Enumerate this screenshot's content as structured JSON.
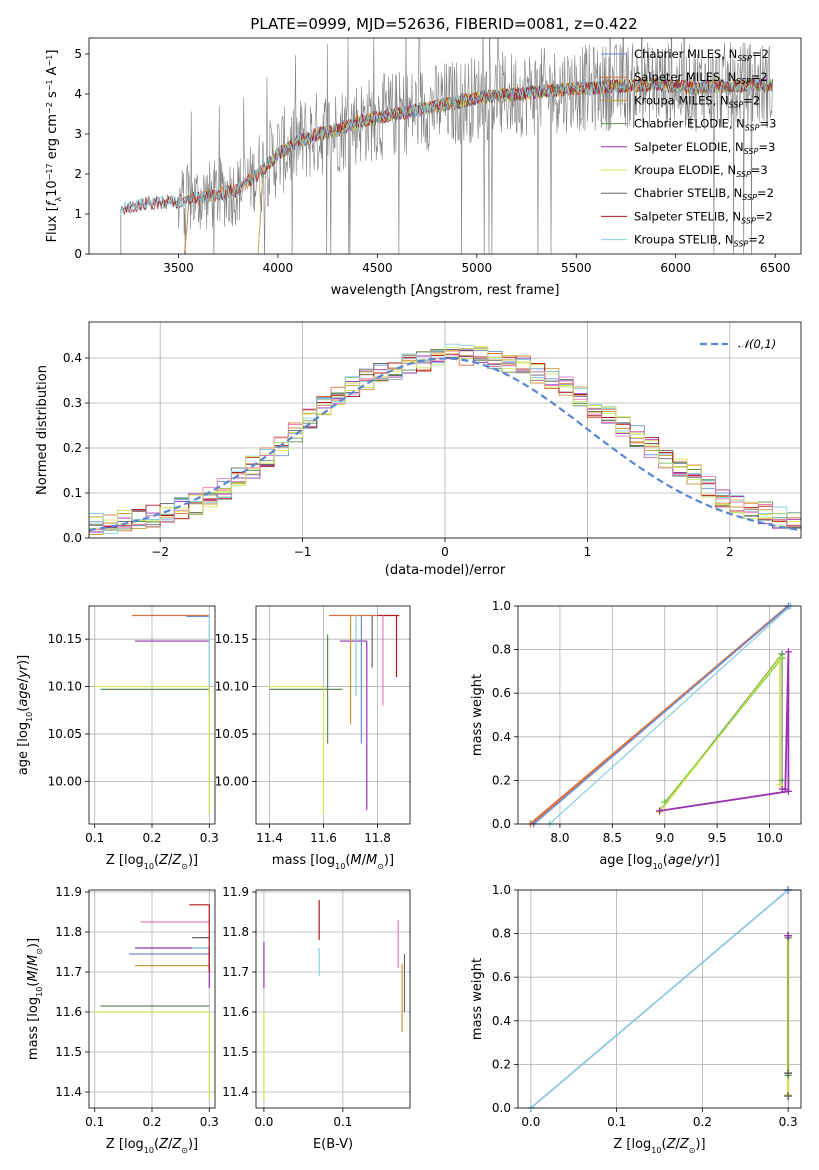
{
  "title": "PLATE=0999, MJD=52636, FIBERID=0081, z=0.422",
  "colors": {
    "chabrier_miles": "#6a8fd8",
    "salpeter_miles": "#e0703a",
    "kroupa_miles": "#c89a3a",
    "chabrier_elodie": "#5e8e5e",
    "salpeter_elodie": "#9b30b0",
    "kroupa_elodie": "#d8e055",
    "chabrier_stelib": "#666666",
    "salpeter_stelib": "#b01818",
    "kroupa_stelib": "#86cfe0",
    "pink": "#e880b8",
    "green": "#7ad040",
    "lime": "#c8e86a",
    "data": "#808080",
    "normal": "#5a86d6"
  },
  "legend_spectrum": [
    {
      "main": "Chabrier MILES, N",
      "sub": "SSP",
      "tail": "=2",
      "color_key": "chabrier_miles"
    },
    {
      "main": "Salpeter MILES, N",
      "sub": "SSP",
      "tail": "=2",
      "color_key": "salpeter_miles"
    },
    {
      "main": "Kroupa MILES, N",
      "sub": "SSP",
      "tail": "=2",
      "color_key": "kroupa_miles"
    },
    {
      "main": "Chabrier ELODIE, N",
      "sub": "SSP",
      "tail": "=3",
      "color_key": "chabrier_elodie"
    },
    {
      "main": "Salpeter ELODIE, N",
      "sub": "SSP",
      "tail": "=3",
      "color_key": "salpeter_elodie"
    },
    {
      "main": "Kroupa ELODIE, N",
      "sub": "SSP",
      "tail": "=3",
      "color_key": "kroupa_elodie"
    },
    {
      "main": "Chabrier STELIB, N",
      "sub": "SSP",
      "tail": "=2",
      "color_key": "chabrier_stelib"
    },
    {
      "main": "Salpeter STELIB, N",
      "sub": "SSP",
      "tail": "=2",
      "color_key": "salpeter_stelib"
    },
    {
      "main": "Kroupa STELIB, N",
      "sub": "SSP",
      "tail": "=2",
      "color_key": "kroupa_stelib"
    }
  ],
  "chart_data": [
    {
      "id": "spectrum",
      "type": "line",
      "xlabel": "wavelength [Angstrom, rest frame]",
      "ylabel": "Flux [f_λ 10^-17 erg cm^-2 s^-1 A^-1]",
      "xlim": [
        3050,
        6630
      ],
      "ylim": [
        0,
        5.4
      ],
      "xticks": [
        3500,
        4000,
        4500,
        5000,
        5500,
        6000,
        6500
      ],
      "yticks": [
        0,
        1,
        2,
        3,
        4,
        5
      ],
      "grid": false,
      "legend_position": "right",
      "continuum": {
        "x": [
          3210,
          3300,
          3400,
          3500,
          3600,
          3700,
          3800,
          3900,
          4000,
          4100,
          4200,
          4300,
          4400,
          4500,
          4600,
          4700,
          4800,
          4900,
          5000,
          5100,
          5200,
          5300,
          5400,
          5500,
          5600,
          5700,
          5800,
          5900,
          6000,
          6100,
          6200,
          6300,
          6400,
          6480
        ],
        "y": [
          1.1,
          1.25,
          1.28,
          1.3,
          1.4,
          1.5,
          1.6,
          2.0,
          2.5,
          2.8,
          3.0,
          3.1,
          3.3,
          3.4,
          3.5,
          3.6,
          3.7,
          3.8,
          3.9,
          3.95,
          4.0,
          4.05,
          4.1,
          4.15,
          4.15,
          4.2,
          4.2,
          4.25,
          4.2,
          4.15,
          4.2,
          4.2,
          4.25,
          4.2
        ]
      },
      "series_names": [
        "Chabrier MILES, NSSP=2",
        "Salpeter MILES, NSSP=2",
        "Kroupa MILES, NSSP=2",
        "Chabrier ELODIE, NSSP=3",
        "Salpeter ELODIE, NSSP=3",
        "Kroupa ELODIE, NSSP=3",
        "Chabrier STELIB, NSSP=2",
        "Salpeter STELIB, NSSP=2",
        "Kroupa STELIB, NSSP=2"
      ]
    },
    {
      "id": "residual_hist",
      "type": "line",
      "xlabel": "(data-model)/error",
      "ylabel": "Normed distribution",
      "xlim": [
        -2.5,
        2.5
      ],
      "ylim": [
        0,
        0.48
      ],
      "xticks": [
        -2,
        -1,
        0,
        1,
        2
      ],
      "yticks": [
        0.0,
        0.1,
        0.2,
        0.3,
        0.4
      ],
      "grid": true,
      "legend": [
        {
          "name": "𝒩(0,1)",
          "style": "dashed"
        }
      ],
      "legend_position": "top-right",
      "hist_envelope": {
        "x": [
          -2.5,
          -2.3,
          -2.1,
          -1.9,
          -1.7,
          -1.5,
          -1.3,
          -1.1,
          -0.9,
          -0.7,
          -0.5,
          -0.3,
          -0.1,
          0.1,
          0.3,
          0.5,
          0.7,
          0.9,
          1.1,
          1.3,
          1.5,
          1.7,
          1.9,
          2.1,
          2.3,
          2.5
        ],
        "y": [
          0.03,
          0.035,
          0.045,
          0.06,
          0.08,
          0.12,
          0.17,
          0.22,
          0.28,
          0.33,
          0.36,
          0.38,
          0.4,
          0.41,
          0.4,
          0.39,
          0.36,
          0.33,
          0.28,
          0.24,
          0.19,
          0.15,
          0.1,
          0.07,
          0.05,
          0.03
        ]
      },
      "normal": {
        "mean": 0,
        "sigma": 1
      }
    },
    {
      "id": "age_vs_Z",
      "type": "line",
      "xlabel": "Z [log10(Z/Z⊙)]",
      "ylabel": "age [log10(age/yr)]",
      "xlim": [
        0.09,
        0.31
      ],
      "ylim": [
        9.955,
        10.185
      ],
      "xticks": [
        0.1,
        0.2,
        0.3
      ],
      "yticks": [
        10.0,
        10.05,
        10.1,
        10.15
      ],
      "grid": true,
      "segments": [
        {
          "color_key": "salpeter_miles",
          "h": {
            "y": 10.175,
            "x0": 0.165,
            "x1": 0.3
          }
        },
        {
          "color_key": "chabrier_miles",
          "h": {
            "y": 10.174,
            "x0": 0.26,
            "x1": 0.3
          }
        },
        {
          "color_key": "salpeter_elodie",
          "h": {
            "y": 10.148,
            "x0": 0.17,
            "x1": 0.3
          }
        },
        {
          "color_key": "kroupa_elodie",
          "h": {
            "y": 10.1,
            "x0": 0.1,
            "x1": 0.3
          }
        },
        {
          "color_key": "chabrier_elodie",
          "h": {
            "y": 10.097,
            "x0": 0.11,
            "x1": 0.3
          }
        },
        {
          "color_key": "kroupa_stelib",
          "v": {
            "x": 0.3,
            "y0": 10.09,
            "y1": 10.176
          }
        },
        {
          "color_key": "kroupa_elodie",
          "v": {
            "x": 0.3,
            "y0": 9.965,
            "y1": 10.1
          }
        }
      ]
    },
    {
      "id": "age_vs_mass",
      "type": "line",
      "xlabel": "mass [log10(M/M⊙)]",
      "ylabel": "",
      "xlim": [
        11.35,
        11.92
      ],
      "ylim": [
        9.955,
        10.185
      ],
      "xticks": [
        11.4,
        11.6,
        11.8
      ],
      "yticks": [
        10.0,
        10.05,
        10.1,
        10.15
      ],
      "grid": true,
      "segments": [
        {
          "color_key": "kroupa_elodie",
          "h": {
            "y": 10.1,
            "x0": 11.39,
            "x1": 11.6
          }
        },
        {
          "color_key": "chabrier_elodie",
          "h": {
            "y": 10.097,
            "x0": 11.4,
            "x1": 11.67
          }
        },
        {
          "color_key": "salpeter_miles",
          "h": {
            "y": 10.175,
            "x0": 11.62,
            "x1": 11.8
          }
        },
        {
          "color_key": "salpeter_stelib",
          "h": {
            "y": 10.175,
            "x0": 11.8,
            "x1": 11.88
          }
        },
        {
          "color_key": "salpeter_elodie",
          "h": {
            "y": 10.148,
            "x0": 11.66,
            "x1": 11.76
          }
        },
        {
          "color_key": "kroupa_elodie",
          "v": {
            "x": 11.6,
            "y0": 9.965,
            "y1": 10.1
          }
        },
        {
          "color_key": "chabrier_elodie",
          "v": {
            "x": 11.615,
            "y0": 10.04,
            "y1": 10.155
          }
        },
        {
          "color_key": "chabrier_miles",
          "v": {
            "x": 11.74,
            "y0": 10.04,
            "y1": 10.175
          }
        },
        {
          "color_key": "kroupa_miles",
          "v": {
            "x": 11.7,
            "y0": 10.06,
            "y1": 10.175
          }
        },
        {
          "color_key": "salpeter_elodie",
          "v": {
            "x": 11.76,
            "y0": 9.97,
            "y1": 10.148
          }
        },
        {
          "color_key": "chabrier_stelib",
          "v": {
            "x": 11.78,
            "y0": 10.12,
            "y1": 10.175
          }
        },
        {
          "color_key": "pink",
          "v": {
            "x": 11.82,
            "y0": 10.08,
            "y1": 10.175
          }
        },
        {
          "color_key": "salpeter_stelib",
          "v": {
            "x": 11.87,
            "y0": 10.11,
            "y1": 10.175
          }
        },
        {
          "color_key": "kroupa_stelib",
          "v": {
            "x": 11.72,
            "y0": 10.09,
            "y1": 10.176
          }
        }
      ]
    },
    {
      "id": "weight_vs_age",
      "type": "line",
      "xlabel": "age [log10(age/yr)]",
      "ylabel": "mass weight",
      "xlim": [
        7.6,
        10.3
      ],
      "ylim": [
        0,
        1.0
      ],
      "xticks": [
        8.0,
        8.5,
        9.0,
        9.5,
        10.0
      ],
      "yticks": [
        0.0,
        0.2,
        0.4,
        0.6,
        0.8,
        1.0
      ],
      "grid": true,
      "series": [
        {
          "color_key": "salpeter_miles",
          "x": [
            7.72,
            10.18
          ],
          "y": [
            0.0,
            1.0
          ],
          "width": 2.5
        },
        {
          "color_key": "chabrier_miles",
          "x": [
            7.75,
            10.18
          ],
          "y": [
            0.0,
            1.0
          ],
          "width": 1.5
        },
        {
          "color_key": "kroupa_stelib",
          "x": [
            7.9,
            10.2
          ],
          "y": [
            0.0,
            1.0
          ],
          "width": 1.2
        },
        {
          "color_key": "chabrier_elodie",
          "x": [
            8.95,
            10.12,
            10.12
          ],
          "y": [
            0.06,
            0.78,
            0.2
          ],
          "width": 1.2
        },
        {
          "color_key": "kroupa_elodie",
          "x": [
            8.95,
            10.1,
            10.1
          ],
          "y": [
            0.055,
            0.76,
            0.18
          ],
          "width": 1.8
        },
        {
          "color_key": "green",
          "x": [
            9.0,
            10.12
          ],
          "y": [
            0.1,
            0.76
          ],
          "width": 1.0
        },
        {
          "color_key": "salpeter_elodie",
          "x": [
            8.95,
            10.18,
            10.18,
            10.15,
            10.12
          ],
          "y": [
            0.06,
            0.15,
            0.79,
            0.16,
            0.16
          ],
          "width": 1.8
        }
      ]
    },
    {
      "id": "mass_vs_Z",
      "type": "line",
      "xlabel": "Z [log10(Z/Z⊙)]",
      "ylabel": "mass [log10(M/M⊙)]",
      "xlim": [
        0.09,
        0.31
      ],
      "ylim": [
        11.36,
        11.905
      ],
      "xticks": [
        0.1,
        0.2,
        0.3
      ],
      "yticks": [
        11.4,
        11.5,
        11.6,
        11.7,
        11.8,
        11.9
      ],
      "grid": true,
      "segments": [
        {
          "color_key": "salpeter_stelib",
          "h": {
            "y": 11.868,
            "x0": 0.265,
            "x1": 0.3
          }
        },
        {
          "color_key": "pink",
          "h": {
            "y": 11.825,
            "x0": 0.18,
            "x1": 0.3
          }
        },
        {
          "color_key": "chabrier_stelib",
          "h": {
            "y": 11.786,
            "x0": 0.27,
            "x1": 0.3
          }
        },
        {
          "color_key": "salpeter_elodie",
          "h": {
            "y": 11.76,
            "x0": 0.17,
            "x1": 0.3
          }
        },
        {
          "color_key": "kroupa_stelib",
          "h": {
            "y": 11.76,
            "x0": 0.27,
            "x1": 0.3
          }
        },
        {
          "color_key": "chabrier_miles",
          "h": {
            "y": 11.745,
            "x0": 0.16,
            "x1": 0.3
          }
        },
        {
          "color_key": "kroupa_miles",
          "h": {
            "y": 11.716,
            "x0": 0.17,
            "x1": 0.3
          }
        },
        {
          "color_key": "chabrier_elodie",
          "h": {
            "y": 11.615,
            "x0": 0.11,
            "x1": 0.3
          }
        },
        {
          "color_key": "kroupa_elodie",
          "h": {
            "y": 11.6,
            "x0": 0.1,
            "x1": 0.3
          }
        },
        {
          "color_key": "kroupa_elodie",
          "v": {
            "x": 0.3,
            "y0": 11.38,
            "y1": 11.6
          }
        },
        {
          "color_key": "salpeter_elodie",
          "v": {
            "x": 0.3,
            "y0": 11.66,
            "y1": 11.76
          }
        },
        {
          "color_key": "salpeter_stelib",
          "v": {
            "x": 0.3,
            "y0": 11.7,
            "y1": 11.868
          }
        }
      ]
    },
    {
      "id": "mass_vs_EBV",
      "type": "line",
      "xlabel": "E(B-V)",
      "ylabel": "",
      "xlim": [
        -0.01,
        0.185
      ],
      "ylim": [
        11.36,
        11.905
      ],
      "xticks": [
        0.0,
        0.1
      ],
      "yticks": [
        11.4,
        11.5,
        11.6,
        11.7,
        11.8,
        11.9
      ],
      "grid": true,
      "segments": [
        {
          "color_key": "kroupa_elodie",
          "v": {
            "x": 0.0,
            "y0": 11.38,
            "y1": 11.6
          }
        },
        {
          "color_key": "salpeter_elodie",
          "v": {
            "x": 0.0,
            "y0": 11.66,
            "y1": 11.775
          }
        },
        {
          "color_key": "salpeter_stelib",
          "v": {
            "x": 0.07,
            "y0": 11.78,
            "y1": 11.88
          }
        },
        {
          "color_key": "kroupa_stelib",
          "v": {
            "x": 0.07,
            "y0": 11.69,
            "y1": 11.76
          }
        },
        {
          "color_key": "pink",
          "v": {
            "x": 0.17,
            "y0": 11.71,
            "y1": 11.83
          }
        },
        {
          "color_key": "kroupa_miles",
          "v": {
            "x": 0.175,
            "y0": 11.55,
            "y1": 11.72
          }
        },
        {
          "color_key": "chabrier_stelib",
          "v": {
            "x": 0.178,
            "y0": 11.6,
            "y1": 11.745
          }
        }
      ]
    },
    {
      "id": "weight_vs_Z",
      "type": "line",
      "xlabel": "Z [log10(Z/Z⊙)]",
      "ylabel": "mass weight",
      "xlim": [
        -0.015,
        0.315
      ],
      "ylim": [
        0,
        1.0
      ],
      "xticks": [
        0.0,
        0.1,
        0.2,
        0.3
      ],
      "yticks": [
        0.0,
        0.2,
        0.4,
        0.6,
        0.8,
        1.0
      ],
      "grid": true,
      "series": [
        {
          "color_key": "chabrier_miles",
          "x": [
            0.0,
            0.3
          ],
          "y": [
            0.0,
            1.0
          ],
          "width": 1.5
        },
        {
          "color_key": "kroupa_stelib",
          "x": [
            0.0,
            0.3
          ],
          "y": [
            0.0,
            1.0
          ],
          "width": 1.2
        },
        {
          "color_key": "kroupa_elodie",
          "x": [
            0.3,
            0.3
          ],
          "y": [
            0.06,
            0.79
          ],
          "width": 2.5
        },
        {
          "color_key": "chabrier_elodie",
          "x": [
            0.3,
            0.3
          ],
          "y": [
            0.15,
            0.78
          ],
          "width": 1.0
        }
      ],
      "markers": [
        {
          "color_key": "salpeter_elodie",
          "x": 0.3,
          "y": 0.79
        },
        {
          "color_key": "chabrier_stelib",
          "x": 0.3,
          "y": 0.16
        },
        {
          "color_key": "chabrier_stelib",
          "x": 0.3,
          "y": 0.055
        },
        {
          "color_key": "chabrier_miles",
          "x": 0.3,
          "y": 1.0
        }
      ]
    }
  ]
}
